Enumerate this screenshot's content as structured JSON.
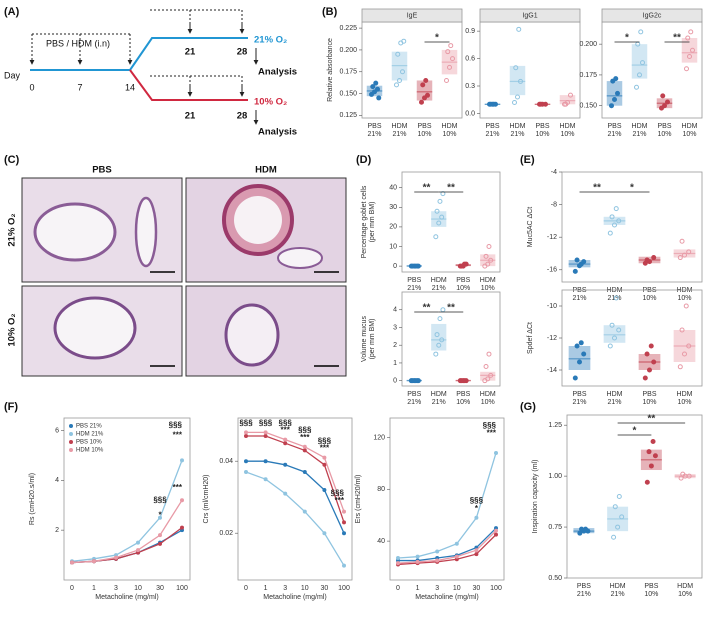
{
  "panels": [
    "(A)",
    "(B)",
    "(C)",
    "(D)",
    "(E)",
    "(F)",
    "(G)"
  ],
  "diagram": {
    "treatment": "PBS / HDM (i.n)",
    "day_label": "Day",
    "days": [
      "0",
      "7",
      "14"
    ],
    "upper": {
      "label": "21% O₂",
      "days": [
        "21",
        "28"
      ],
      "end": "Analysis"
    },
    "lower": {
      "label": "10% O₂",
      "days": [
        "21",
        "28"
      ],
      "end": "Analysis"
    }
  },
  "images": {
    "columns": [
      "PBS",
      "HDM"
    ],
    "rows": [
      "21% O₂",
      "10% O₂"
    ]
  },
  "chart_data": [
    {
      "type": "crossbar",
      "title": "IgE",
      "ylabel": [
        "Relative absorbance"
      ],
      "categories": [
        "PBS 21%",
        "HDM 21%",
        "PBS 10%",
        "HDM 10%"
      ],
      "colors": [
        "#2a7ab8",
        "#8fc4e0",
        "#c0404f",
        "#e89aa6"
      ],
      "ylim": [
        0.122,
        0.232
      ],
      "yticks": [
        {
          "value": 0.125,
          "label": "0.125"
        },
        {
          "value": 0.15,
          "label": "0.150"
        },
        {
          "value": 0.175,
          "label": "0.175"
        },
        {
          "value": 0.2,
          "label": "0.200"
        },
        {
          "value": 0.225,
          "label": "0.225"
        }
      ],
      "groups": [
        {
          "mean": 0.153,
          "low": 0.147,
          "high": 0.159,
          "points": [
            0.149,
            0.152,
            0.155,
            0.158,
            0.162,
            0.145
          ]
        },
        {
          "mean": 0.182,
          "low": 0.165,
          "high": 0.198,
          "points": [
            0.16,
            0.165,
            0.175,
            0.195,
            0.208,
            0.21
          ]
        },
        {
          "mean": 0.152,
          "low": 0.142,
          "high": 0.165,
          "points": [
            0.14,
            0.145,
            0.148,
            0.16,
            0.165
          ]
        },
        {
          "mean": 0.186,
          "low": 0.172,
          "high": 0.2,
          "points": [
            0.165,
            0.18,
            0.19,
            0.198,
            0.205
          ]
        }
      ],
      "significance": [
        {
          "between": [
            2,
            3
          ],
          "label": "*"
        }
      ]
    },
    {
      "type": "crossbar",
      "title": "IgG1",
      "categories": [
        "PBS 21%",
        "HDM 21%",
        "PBS 10%",
        "HDM 10%"
      ],
      "colors": [
        "#2a7ab8",
        "#8fc4e0",
        "#c0404f",
        "#e89aa6"
      ],
      "ylim": [
        -0.05,
        1.0
      ],
      "yticks": [
        {
          "value": 0,
          "label": "0.0"
        },
        0.3,
        0.6,
        0.9
      ],
      "groups": [
        {
          "mean": 0.1,
          "low": 0.095,
          "high": 0.105,
          "points": [
            0.1,
            0.1,
            0.1,
            0.1,
            0.1
          ]
        },
        {
          "mean": 0.35,
          "low": 0.2,
          "high": 0.52,
          "points": [
            0.12,
            0.18,
            0.35,
            0.5,
            0.92
          ]
        },
        {
          "mean": 0.1,
          "low": 0.095,
          "high": 0.105,
          "points": [
            0.1,
            0.1,
            0.1,
            0.1
          ]
        },
        {
          "mean": 0.14,
          "low": 0.1,
          "high": 0.2,
          "points": [
            0.1,
            0.12,
            0.2,
            0.1
          ]
        }
      ],
      "significance": []
    },
    {
      "type": "crossbar",
      "title": "IgG2c",
      "categories": [
        "PBS 21%",
        "HDM 21%",
        "PBS 10%",
        "HDM 10%"
      ],
      "colors": [
        "#2a7ab8",
        "#8fc4e0",
        "#c0404f",
        "#e89aa6"
      ],
      "ylim": [
        0.14,
        0.218
      ],
      "yticks": [
        {
          "value": 0.15,
          "label": "0.150"
        },
        {
          "value": 0.175,
          "label": "0.175"
        },
        {
          "value": 0.2,
          "label": "0.200"
        }
      ],
      "groups": [
        {
          "mean": 0.158,
          "low": 0.15,
          "high": 0.17,
          "points": [
            0.15,
            0.155,
            0.16,
            0.17,
            0.172
          ]
        },
        {
          "mean": 0.183,
          "low": 0.172,
          "high": 0.2,
          "points": [
            0.165,
            0.175,
            0.185,
            0.2,
            0.21
          ]
        },
        {
          "mean": 0.152,
          "low": 0.148,
          "high": 0.156,
          "points": [
            0.148,
            0.15,
            0.153,
            0.158
          ]
        },
        {
          "mean": 0.193,
          "low": 0.185,
          "high": 0.205,
          "points": [
            0.18,
            0.19,
            0.195,
            0.205,
            0.21
          ]
        }
      ],
      "significance": [
        {
          "between": [
            0,
            1
          ],
          "label": "*"
        },
        {
          "between": [
            2,
            3
          ],
          "label": "**"
        }
      ]
    },
    {
      "type": "crossbar",
      "ylabel": [
        "Percentage goblet cells",
        "(per mm BM)"
      ],
      "categories": [
        "PBS 21%",
        "HDM 21%",
        "PBS 10%",
        "HDM 10%"
      ],
      "colors": [
        "#2a7ab8",
        "#8fc4e0",
        "#c0404f",
        "#e89aa6"
      ],
      "ylim": [
        -3,
        48
      ],
      "yticks": [
        0,
        10,
        20,
        30,
        40
      ],
      "groups": [
        {
          "mean": 0,
          "low": 0,
          "high": 0.5,
          "points": [
            0,
            0,
            0,
            0,
            0,
            0
          ]
        },
        {
          "mean": 24,
          "low": 20,
          "high": 28,
          "points": [
            15,
            22,
            25,
            28,
            33,
            37
          ]
        },
        {
          "mean": 0.5,
          "low": 0,
          "high": 1,
          "points": [
            0,
            0,
            1,
            0,
            1
          ]
        },
        {
          "mean": 3,
          "low": 0,
          "high": 6,
          "points": [
            0,
            1,
            3,
            5,
            10
          ]
        }
      ],
      "significance": [
        {
          "between": [
            0,
            1
          ],
          "label": "**"
        },
        {
          "between": [
            1,
            2
          ],
          "label": "**"
        }
      ]
    },
    {
      "type": "crossbar",
      "ylabel": [
        "Volume mucus",
        "(per mm BM)"
      ],
      "categories": [
        "PBS 21%",
        "HDM 21%",
        "PBS 10%",
        "HDM 10%"
      ],
      "colors": [
        "#2a7ab8",
        "#8fc4e0",
        "#c0404f",
        "#e89aa6"
      ],
      "ylim": [
        -0.3,
        5
      ],
      "yticks": [
        0,
        1,
        2,
        3,
        4
      ],
      "groups": [
        {
          "mean": 0,
          "low": 0,
          "high": 0.05,
          "points": [
            0,
            0,
            0,
            0,
            0,
            0
          ]
        },
        {
          "mean": 2.3,
          "low": 1.7,
          "high": 3.2,
          "points": [
            1.5,
            2,
            2.3,
            2.6,
            3.5,
            4
          ]
        },
        {
          "mean": 0,
          "low": 0,
          "high": 0.05,
          "points": [
            0,
            0,
            0,
            0,
            0
          ]
        },
        {
          "mean": 0.3,
          "low": 0,
          "high": 0.5,
          "points": [
            0,
            0.1,
            0.3,
            0.8,
            1.5
          ]
        }
      ],
      "significance": [
        {
          "between": [
            0,
            1
          ],
          "label": "**"
        },
        {
          "between": [
            1,
            2
          ],
          "label": "**"
        }
      ]
    },
    {
      "type": "crossbar",
      "ylabel": [
        "Muc5AC ΔCt"
      ],
      "categories": [
        "PBS 21%",
        "HDM 21%",
        "PBS 10%",
        "HDM 10%"
      ],
      "colors": [
        "#2a7ab8",
        "#8fc4e0",
        "#c0404f",
        "#e89aa6"
      ],
      "ylim": [
        -17.5,
        -4
      ],
      "yticks": [
        -16,
        -12,
        -8,
        -4
      ],
      "groups": [
        {
          "mean": -15.3,
          "low": -15.7,
          "high": -14.8,
          "points": [
            -16.2,
            -15.5,
            -15,
            -14.8,
            -15.3
          ]
        },
        {
          "mean": -10,
          "low": -10.5,
          "high": -9.5,
          "points": [
            -11.5,
            -10.5,
            -10,
            -9.5,
            -8.5
          ]
        },
        {
          "mean": -14.8,
          "low": -15.2,
          "high": -14.4,
          "points": [
            -15.2,
            -15,
            -14.5,
            -14.8
          ]
        },
        {
          "mean": -14,
          "low": -14.5,
          "high": -13.5,
          "points": [
            -14.5,
            -14.2,
            -13.8,
            -12.5
          ]
        }
      ],
      "significance": [
        {
          "between": [
            0,
            1
          ],
          "label": "**"
        },
        {
          "between": [
            1,
            2
          ],
          "label": "*"
        }
      ]
    },
    {
      "type": "crossbar",
      "ylabel": [
        "Spdef ΔCt"
      ],
      "categories": [
        "PBS 21%",
        "HDM 21%",
        "PBS 10%",
        "HDM 10%"
      ],
      "colors": [
        "#2a7ab8",
        "#8fc4e0",
        "#c0404f",
        "#e89aa6"
      ],
      "ylim": [
        -15,
        -9
      ],
      "yticks": [
        -14,
        -12,
        -10
      ],
      "groups": [
        {
          "mean": -13.3,
          "low": -14,
          "high": -12.5,
          "points": [
            -14.5,
            -13.5,
            -13,
            -12.5,
            -12.3
          ]
        },
        {
          "mean": -11.8,
          "low": -12.3,
          "high": -11.2,
          "points": [
            -12.5,
            -12,
            -11.5,
            -11.2,
            -9.5
          ]
        },
        {
          "mean": -13.5,
          "low": -14,
          "high": -13,
          "points": [
            -14.5,
            -14,
            -13.5,
            -13,
            -12.5
          ]
        },
        {
          "mean": -12.5,
          "low": -13.5,
          "high": -11.5,
          "points": [
            -13.8,
            -13,
            -12.5,
            -11.5,
            -10
          ]
        }
      ],
      "significance": []
    },
    {
      "type": "line",
      "xlabel": "Metacholine (mg/ml)",
      "ylabel": [
        "Rs (cmH20.s/ml)"
      ],
      "categories": [
        "0",
        "1",
        "3",
        "10",
        "30",
        "100"
      ],
      "ylim": [
        0,
        6.5
      ],
      "yticks": [
        2,
        4,
        6
      ],
      "legend": "top-left",
      "series": [
        {
          "name": "PBS 21%",
          "color": "#2a7ab8",
          "values": [
            0.7,
            0.75,
            0.85,
            1.1,
            1.5,
            2.0
          ]
        },
        {
          "name": "HDM 21%",
          "color": "#8fc4e0",
          "values": [
            0.75,
            0.85,
            1.0,
            1.5,
            2.5,
            4.8
          ]
        },
        {
          "name": "PBS 10%",
          "color": "#c0404f",
          "values": [
            0.7,
            0.75,
            0.85,
            1.1,
            1.45,
            2.1
          ]
        },
        {
          "name": "HDM 10%",
          "color": "#e89aa6",
          "values": [
            0.7,
            0.75,
            0.9,
            1.2,
            1.8,
            3.2
          ]
        }
      ],
      "annotations": [
        {
          "text": "§§§",
          "x": "30",
          "y": 3.2
        },
        {
          "text": "*",
          "x": "30",
          "y": 2.6
        },
        {
          "text": "§§§",
          "x": "100",
          "y": 6.2
        },
        {
          "text": "***",
          "x": "100",
          "y": 5.8
        },
        {
          "text": "***",
          "x": "100",
          "y": 3.7
        }
      ]
    },
    {
      "type": "line",
      "xlabel": "Metacholine (mg/ml)",
      "ylabel": [
        "Crs (ml/cmH20)"
      ],
      "categories": [
        "0",
        "1",
        "3",
        "10",
        "30",
        "100"
      ],
      "ylim": [
        0.007,
        0.052
      ],
      "yticks": [
        0.02,
        0.04
      ],
      "series": [
        {
          "name": "PBS 21%",
          "color": "#2a7ab8",
          "values": [
            0.04,
            0.04,
            0.039,
            0.037,
            0.032,
            0.02
          ]
        },
        {
          "name": "HDM 21%",
          "color": "#8fc4e0",
          "values": [
            0.037,
            0.035,
            0.031,
            0.026,
            0.02,
            0.011
          ]
        },
        {
          "name": "PBS 10%",
          "color": "#c0404f",
          "values": [
            0.047,
            0.047,
            0.045,
            0.043,
            0.039,
            0.023
          ]
        },
        {
          "name": "HDM 10%",
          "color": "#e89aa6",
          "values": [
            0.048,
            0.048,
            0.046,
            0.044,
            0.041,
            0.026
          ]
        }
      ],
      "annotations": [
        {
          "text": "§§§",
          "x": "0",
          "y": 0.0505
        },
        {
          "text": "§§§",
          "x": "1",
          "y": 0.0505
        },
        {
          "text": "§§§",
          "x": "3",
          "y": 0.0505
        },
        {
          "text": "***",
          "x": "3",
          "y": 0.0485
        },
        {
          "text": "§§§",
          "x": "10",
          "y": 0.0485
        },
        {
          "text": "***",
          "x": "10",
          "y": 0.0465
        },
        {
          "text": "§§§",
          "x": "30",
          "y": 0.0455
        },
        {
          "text": "***",
          "x": "30",
          "y": 0.0435
        },
        {
          "text": "§§§",
          "x": "100",
          "y": 0.031
        },
        {
          "text": "***",
          "x": "100",
          "y": 0.029
        }
      ]
    },
    {
      "type": "line",
      "xlabel": "Metacholine (mg/ml)",
      "ylabel": [
        "Ers (cmH20/ml)"
      ],
      "categories": [
        "0",
        "1",
        "3",
        "10",
        "30",
        "100"
      ],
      "ylim": [
        10,
        135
      ],
      "yticks": [
        40,
        80,
        120
      ],
      "series": [
        {
          "name": "PBS 21%",
          "color": "#2a7ab8",
          "values": [
            25,
            25,
            27,
            29,
            35,
            50
          ]
        },
        {
          "name": "HDM 21%",
          "color": "#8fc4e0",
          "values": [
            27,
            28,
            32,
            38,
            58,
            108
          ]
        },
        {
          "name": "PBS 10%",
          "color": "#c0404f",
          "values": [
            22,
            23,
            24,
            26,
            30,
            45
          ]
        },
        {
          "name": "HDM 10%",
          "color": "#e89aa6",
          "values": [
            23,
            24,
            25,
            28,
            33,
            48
          ]
        }
      ],
      "annotations": [
        {
          "text": "§§§",
          "x": "30",
          "y": 71
        },
        {
          "text": "*",
          "x": "30",
          "y": 65
        },
        {
          "text": "§§§",
          "x": "100",
          "y": 129
        },
        {
          "text": "***",
          "x": "100",
          "y": 123
        }
      ]
    },
    {
      "type": "crossbar",
      "ylabel": [
        "Inspiration capacity (ml)"
      ],
      "categories": [
        "PBS 21%",
        "HDM 21%",
        "PBS 10%",
        "HDM 10%"
      ],
      "colors": [
        "#2a7ab8",
        "#8fc4e0",
        "#c0404f",
        "#e89aa6"
      ],
      "ylim": [
        0.5,
        1.3
      ],
      "yticks": [
        {
          "value": 0.5,
          "label": "0.50"
        },
        0.75,
        {
          "value": 1.0,
          "label": "1.00"
        },
        1.25
      ],
      "groups": [
        {
          "mean": 0.73,
          "low": 0.72,
          "high": 0.745,
          "points": [
            0.72,
            0.73,
            0.73,
            0.74,
            0.74
          ]
        },
        {
          "mean": 0.79,
          "low": 0.73,
          "high": 0.85,
          "points": [
            0.7,
            0.75,
            0.8,
            0.85,
            0.9
          ]
        },
        {
          "mean": 1.08,
          "low": 1.03,
          "high": 1.13,
          "points": [
            0.97,
            1.05,
            1.1,
            1.12,
            1.17
          ]
        },
        {
          "mean": 1.0,
          "low": 0.99,
          "high": 1.01,
          "points": [
            0.99,
            1.0,
            1.0,
            1.01
          ]
        }
      ],
      "significance": [
        {
          "between": [
            1,
            2
          ],
          "label": "*"
        },
        {
          "between": [
            1,
            3
          ],
          "label": "**"
        }
      ]
    }
  ]
}
